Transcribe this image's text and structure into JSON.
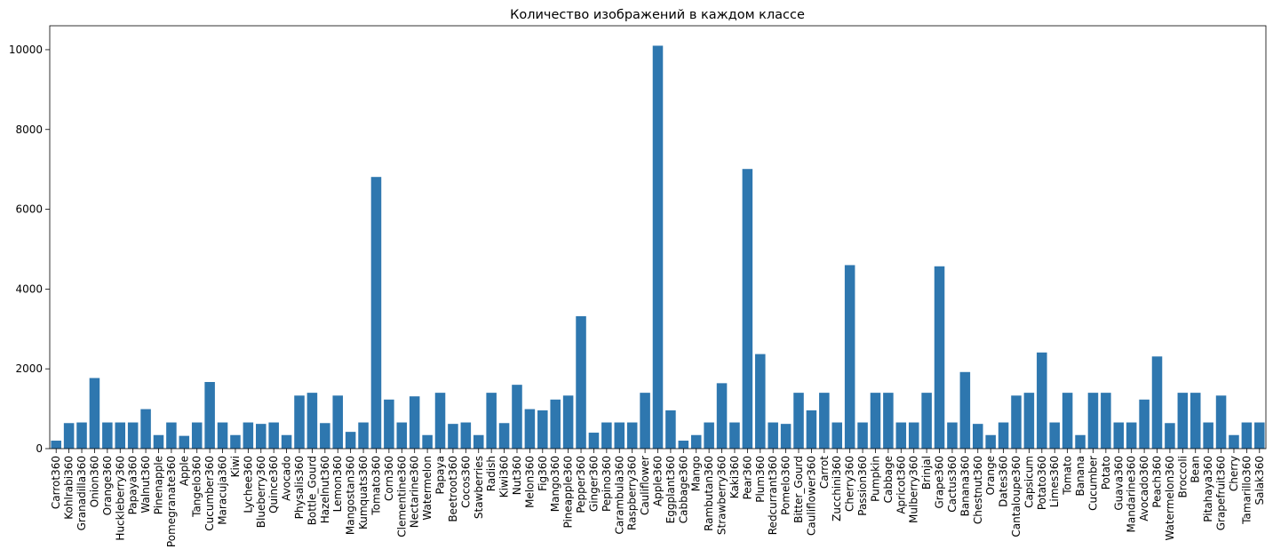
{
  "chart_data": {
    "type": "bar",
    "title": "Количество изображений в каждом классе",
    "xlabel": "",
    "ylabel": "",
    "ylim": [
      0,
      10600
    ],
    "yticks": [
      0,
      2000,
      4000,
      6000,
      8000,
      10000
    ],
    "bar_color": "#2e77af",
    "categories": [
      "Carrot360",
      "Kohlrabi360",
      "Granadilla360",
      "Onion360",
      "Orange360",
      "Huckleberry360",
      "Papaya360",
      "Walnut360",
      "Pinenapple",
      "Pomegranate360",
      "Apple",
      "Tangelo360",
      "Cucumber360",
      "Maracuja360",
      "Kiwi",
      "Lychee360",
      "Blueberry360",
      "Quince360",
      "Avocado",
      "Physalis360",
      "Bottle_Gourd",
      "Hazelnut360",
      "Lemon360",
      "Mangostan360",
      "Kumquats360",
      "Tomato360",
      "Corn360",
      "Clementine360",
      "Nectarine360",
      "Watermelon",
      "Papaya",
      "Beetroot360",
      "Cocos360",
      "Stawberries",
      "Radish",
      "Kiwi360",
      "Nut360",
      "Melon360",
      "Fig360",
      "Mango360",
      "Pineapple360",
      "Pepper360",
      "Ginger360",
      "Pepino360",
      "Carambula360",
      "Raspberry360",
      "Cauliflower",
      "Apple360",
      "Eggplant360",
      "Cabbage360",
      "Mango",
      "Rambutan360",
      "Strawberry360",
      "Kaki360",
      "Pear360",
      "Plum360",
      "Redcurrant360",
      "Pomelo360",
      "Bitter_Gourd",
      "Cauliflower360",
      "Carrot",
      "Zucchini360",
      "Cherry360",
      "Passion360",
      "Pumpkin",
      "Cabbage",
      "Apricot360",
      "Mulberry360",
      "Brinjal",
      "Grape360",
      "Cactus360",
      "Banana360",
      "Chestnut360",
      "Orange",
      "Dates360",
      "Cantaloupe360",
      "Capsicum",
      "Potato360",
      "Limes360",
      "Tomato",
      "Banana",
      "Cucumber",
      "Potato",
      "Guava360",
      "Mandarine360",
      "Avocado360",
      "Peach360",
      "Watermelon360",
      "Broccoli",
      "Bean",
      "Pitahaya360",
      "Grapefruit360",
      "Cherry",
      "Tamarillo360",
      "Salak360"
    ],
    "values": [
      200,
      640,
      656,
      1770,
      656,
      656,
      656,
      990,
      340,
      656,
      320,
      656,
      1670,
      656,
      340,
      656,
      620,
      656,
      340,
      1330,
      1400,
      640,
      1330,
      420,
      656,
      6810,
      1230,
      656,
      1310,
      340,
      1400,
      620,
      656,
      340,
      1400,
      640,
      1600,
      990,
      960,
      1230,
      1330,
      3320,
      400,
      656,
      656,
      656,
      1400,
      10100,
      960,
      200,
      340,
      656,
      1640,
      656,
      7010,
      2370,
      656,
      620,
      1400,
      960,
      1400,
      656,
      4600,
      656,
      1400,
      1400,
      656,
      656,
      1400,
      4570,
      656,
      1920,
      620,
      340,
      656,
      1330,
      1400,
      2410,
      656,
      1400,
      340,
      1400,
      1400,
      656,
      656,
      1230,
      2310,
      640,
      1400,
      1400,
      656,
      1330,
      340,
      656,
      656
    ]
  }
}
